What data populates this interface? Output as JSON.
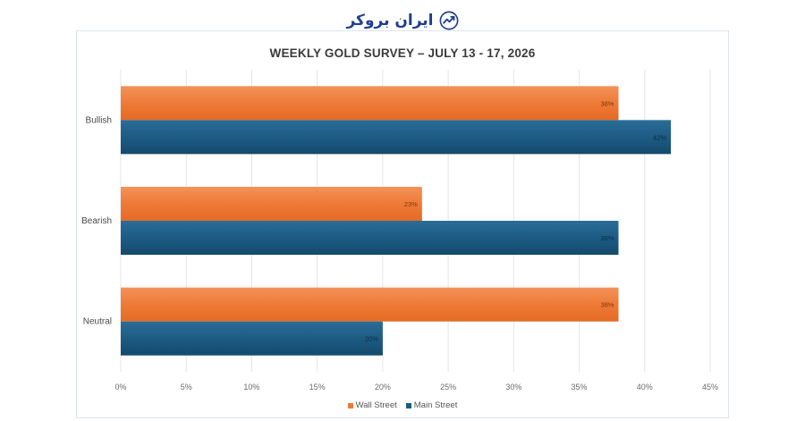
{
  "brand": {
    "name": "ایران بروکر",
    "icon": "trend-chart-icon",
    "color": "#1f3f8f"
  },
  "chart_data": {
    "type": "bar",
    "orientation": "horizontal",
    "title": "WEEKLY GOLD SURVEY – JULY 13 - 17, 2026",
    "categories": [
      "Bullish",
      "Bearish",
      "Neutral"
    ],
    "series": [
      {
        "name": "Wall Street",
        "color": "#ee7a37",
        "values": [
          38,
          23,
          38
        ],
        "labels": [
          "38%",
          "23%",
          "38%"
        ]
      },
      {
        "name": "Main Street",
        "color": "#1d5b83",
        "values": [
          42,
          38,
          20
        ],
        "labels": [
          "42%",
          "38%",
          "20%"
        ]
      }
    ],
    "xlim": [
      0,
      45
    ],
    "x_ticks": [
      "0%",
      "5%",
      "10%",
      "15%",
      "20%",
      "25%",
      "30%",
      "35%",
      "40%",
      "45%"
    ],
    "x_tick_values": [
      0,
      5,
      10,
      15,
      20,
      25,
      30,
      35,
      40,
      45
    ],
    "grid": "vertical",
    "legend": "bottom"
  }
}
